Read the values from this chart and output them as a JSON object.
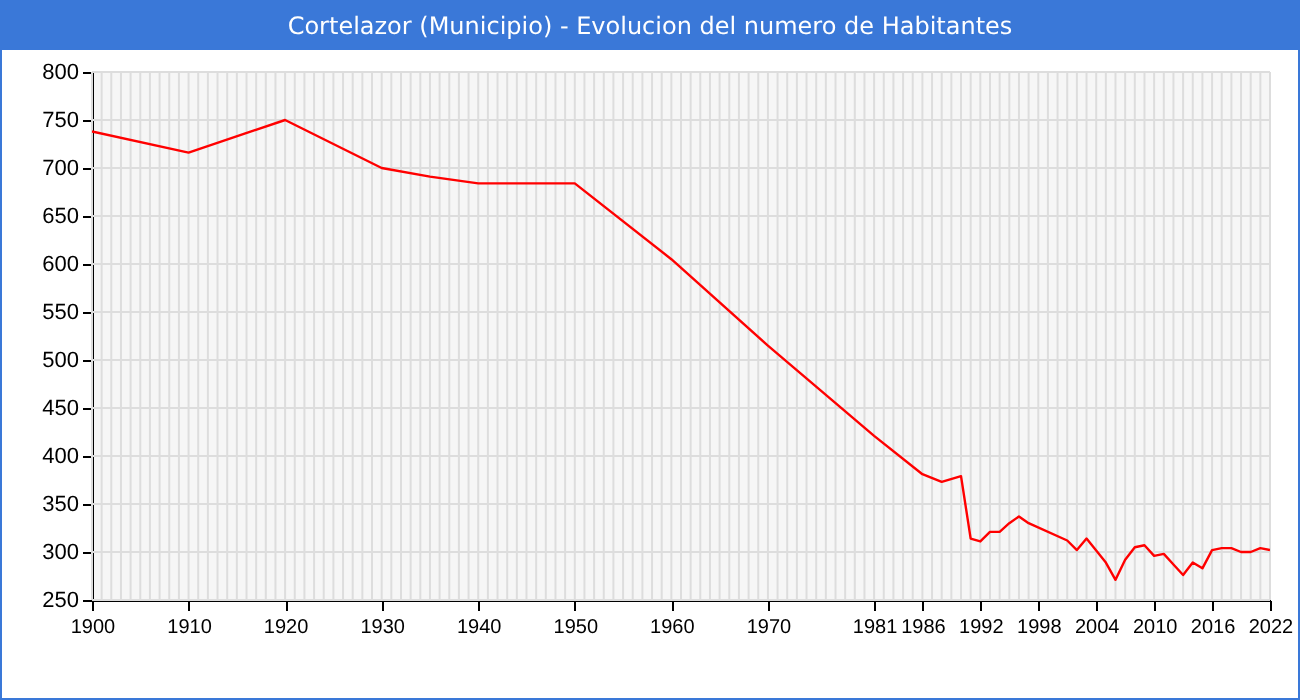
{
  "chart_data": {
    "type": "line",
    "title": "Cortelazor (Municipio) - Evolucion del numero de Habitantes",
    "series": [
      {
        "color": "#ff0000",
        "x": [
          1900,
          1910,
          1920,
          1930,
          1935,
          1940,
          1950,
          1960,
          1970,
          1981,
          1986,
          1988,
          1990,
          1991,
          1992,
          1993,
          1994,
          1995,
          1996,
          1997,
          2001,
          2002,
          2003,
          2005,
          2006,
          2007,
          2008,
          2009,
          2010,
          2011,
          2012,
          2013,
          2014,
          2015,
          2016,
          2017,
          2018,
          2019,
          2020,
          2021,
          2022
        ],
        "values": [
          738,
          716,
          750,
          700,
          691,
          684,
          684,
          605,
          515,
          421,
          381,
          373,
          379,
          314,
          311,
          321,
          321,
          330,
          337,
          330,
          312,
          302,
          314,
          289,
          271,
          292,
          305,
          307,
          296,
          298,
          287,
          276,
          289,
          283,
          302,
          304,
          304,
          300,
          300,
          304,
          302
        ]
      }
    ],
    "xlim": [
      1900,
      2022
    ],
    "xticks": [
      1900,
      1910,
      1920,
      1930,
      1940,
      1950,
      1960,
      1970,
      1981,
      1986,
      1992,
      1998,
      2004,
      2010,
      2016,
      2022
    ],
    "ylim": [
      250,
      800
    ],
    "yticks": [
      250,
      300,
      350,
      400,
      450,
      500,
      550,
      600,
      650,
      700,
      750,
      800
    ],
    "grid": true,
    "marker": "none",
    "line_style": "solid"
  }
}
